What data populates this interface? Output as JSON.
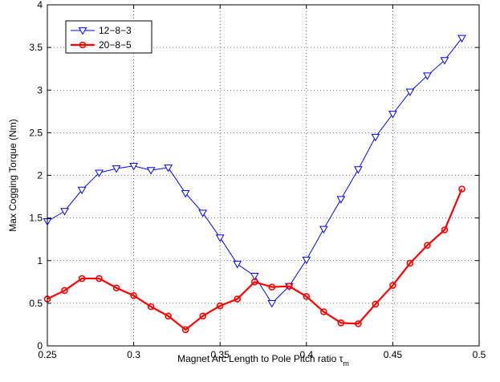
{
  "chart_data": {
    "type": "line",
    "xlabel": "Magnet Arc Length to Pole Pitch ratio τ",
    "xlabel_subscript": "m",
    "ylabel": "Max Cogging Torque (Nm)",
    "xlim": [
      0.25,
      0.5
    ],
    "ylim": [
      0,
      4
    ],
    "xticks": [
      0.25,
      0.3,
      0.35,
      0.4,
      0.45,
      0.5
    ],
    "xtick_labels": [
      "0.25",
      "0.3",
      "0.35",
      "0.4",
      "0.45",
      "0.5"
    ],
    "yticks": [
      0,
      0.5,
      1,
      1.5,
      2,
      2.5,
      3,
      3.5,
      4
    ],
    "ytick_labels": [
      "0",
      "0.5",
      "1",
      "1.5",
      "2",
      "2.5",
      "3",
      "3.5",
      "4"
    ],
    "grid": true,
    "legend_position": "top-left",
    "series": [
      {
        "name": "12−8−3",
        "color": "#0000ff",
        "marker": "triangle-down",
        "x": [
          0.25,
          0.26,
          0.27,
          0.28,
          0.29,
          0.3,
          0.31,
          0.32,
          0.33,
          0.34,
          0.35,
          0.36,
          0.37,
          0.38,
          0.39,
          0.4,
          0.41,
          0.42,
          0.43,
          0.44,
          0.45,
          0.46,
          0.47,
          0.48,
          0.49
        ],
        "y": [
          1.46,
          1.58,
          1.83,
          2.03,
          2.08,
          2.11,
          2.06,
          2.09,
          1.79,
          1.56,
          1.27,
          0.96,
          0.82,
          0.5,
          0.7,
          1.01,
          1.37,
          1.72,
          2.07,
          2.45,
          2.72,
          2.98,
          3.17,
          3.35,
          3.61
        ]
      },
      {
        "name": "20−8−5",
        "color": "#ff0000",
        "marker": "circle",
        "x": [
          0.25,
          0.26,
          0.27,
          0.28,
          0.29,
          0.3,
          0.31,
          0.32,
          0.33,
          0.34,
          0.35,
          0.36,
          0.37,
          0.38,
          0.39,
          0.4,
          0.41,
          0.42,
          0.43,
          0.44,
          0.45,
          0.46,
          0.47,
          0.48,
          0.49
        ],
        "y": [
          0.55,
          0.65,
          0.79,
          0.79,
          0.68,
          0.59,
          0.46,
          0.35,
          0.19,
          0.35,
          0.47,
          0.55,
          0.75,
          0.69,
          0.7,
          0.58,
          0.4,
          0.27,
          0.26,
          0.49,
          0.71,
          0.97,
          1.18,
          1.36,
          1.84
        ]
      }
    ]
  }
}
